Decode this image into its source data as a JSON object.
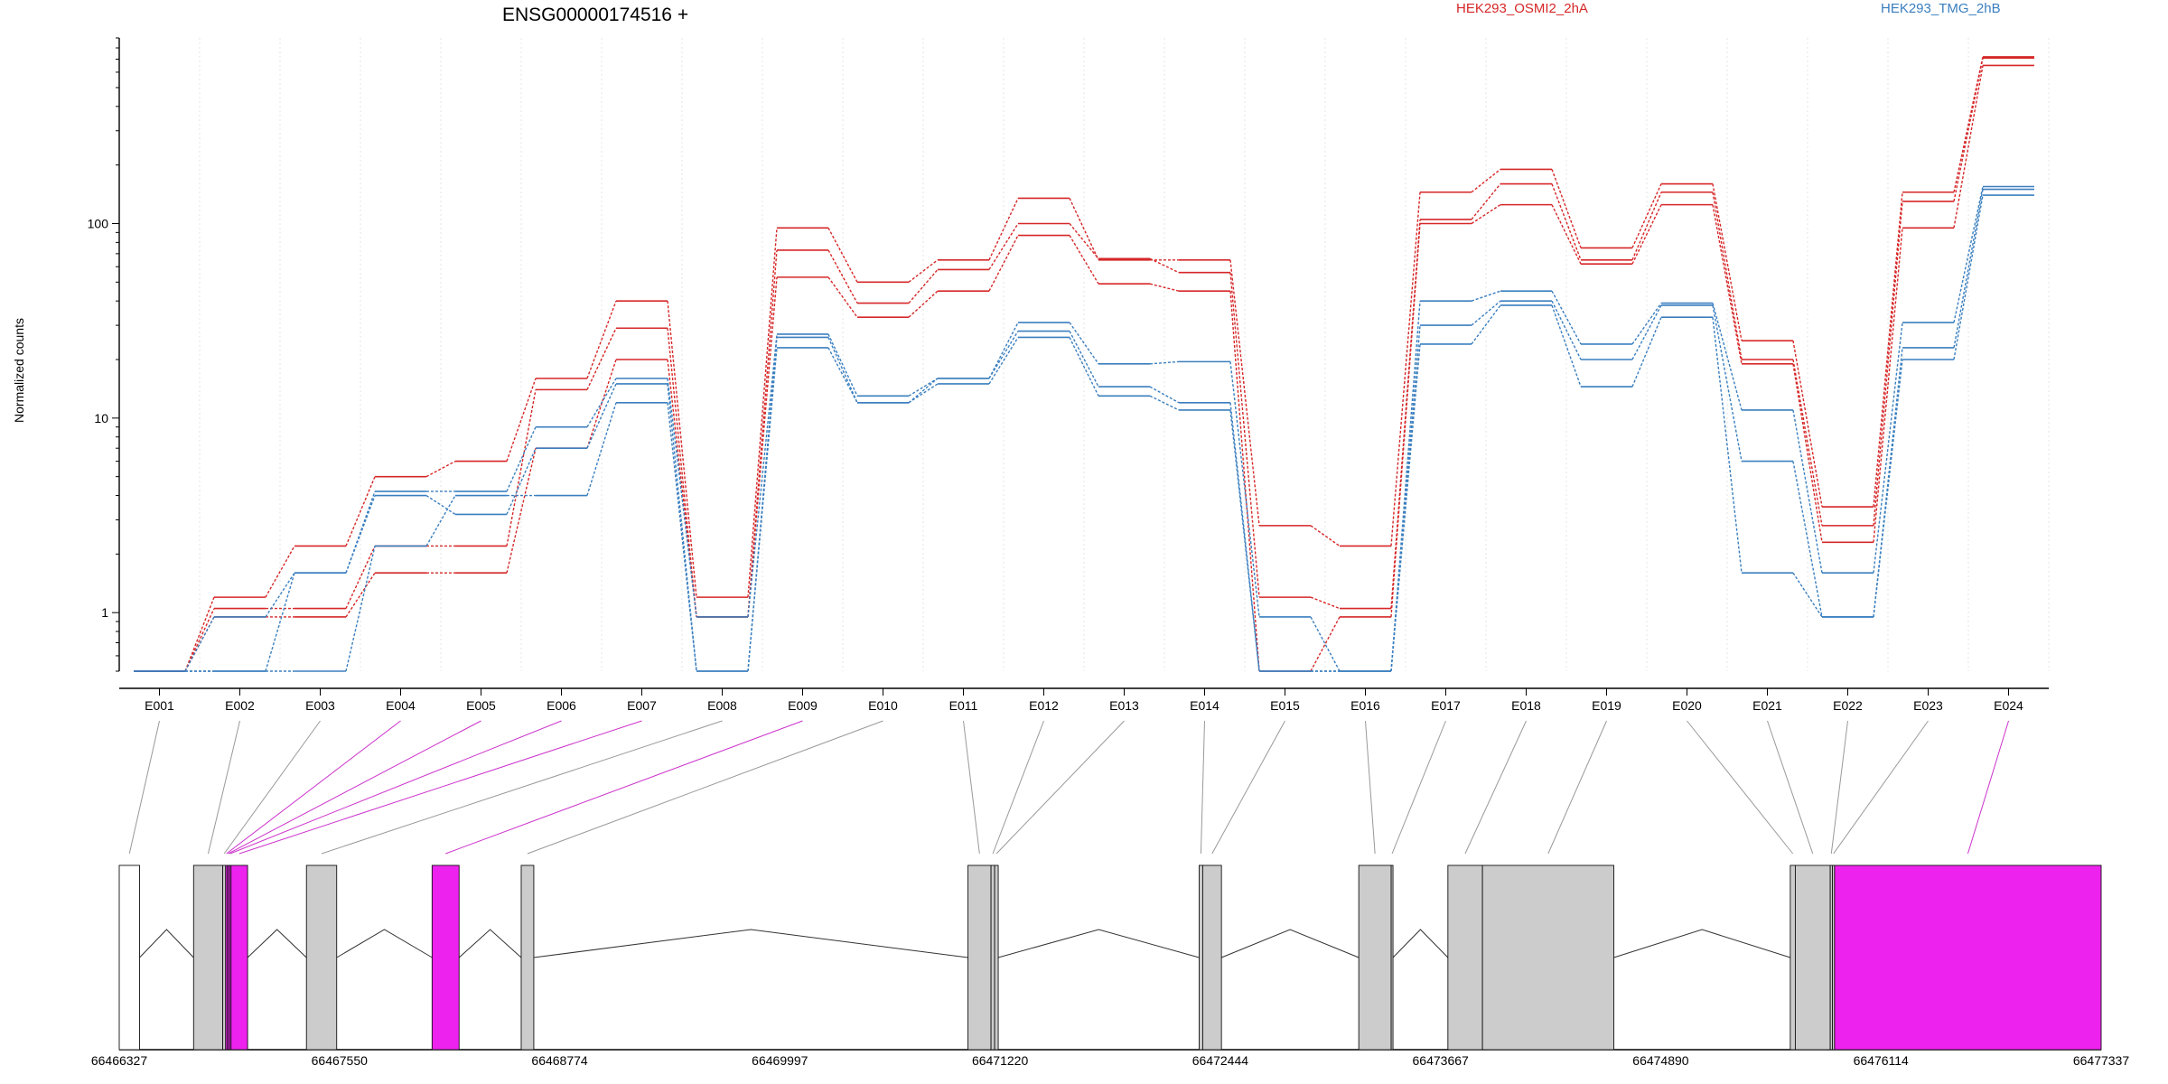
{
  "chart_data": {
    "type": "line",
    "title": "ENSG00000174516 +",
    "ylabel": "Normalized counts",
    "yscale": "log",
    "ylim": [
      0.5,
      900
    ],
    "yticks": [
      "1",
      "10",
      "100"
    ],
    "categories": [
      "E001",
      "E002",
      "E003",
      "E004",
      "E005",
      "E006",
      "E007",
      "E008",
      "E009",
      "E010",
      "E011",
      "E012",
      "E013",
      "E014",
      "E015",
      "E016",
      "E017",
      "E018",
      "E019",
      "E020",
      "E021",
      "E022",
      "E023",
      "E024"
    ],
    "legend": [
      {
        "label": "HEK293_OSMI2_2hA",
        "color": "#d62728"
      },
      {
        "label": "HEK293_TMG_2hB",
        "color": "#3a7fbf"
      }
    ],
    "series": [
      {
        "group": "HEK293_OSMI2_2hA",
        "color": "#d62728",
        "values": [
          0.5,
          1.2,
          2.2,
          5,
          6,
          16,
          40,
          1.2,
          95,
          50,
          65,
          135,
          65,
          65,
          2.8,
          2.2,
          145,
          190,
          75,
          160,
          25,
          3.5,
          145,
          720
        ]
      },
      {
        "group": "HEK293_OSMI2_2hA",
        "color": "#d62728",
        "values": [
          0.5,
          1.05,
          1.05,
          2.2,
          2.2,
          14,
          29,
          0.95,
          73,
          39,
          58,
          100,
          66,
          56,
          1.2,
          1.05,
          105,
          160,
          65,
          145,
          20,
          2.8,
          130,
          710
        ]
      },
      {
        "group": "HEK293_OSMI2_2hA",
        "color": "#d62728",
        "values": [
          0.5,
          0.95,
          0.95,
          1.6,
          1.6,
          7,
          20,
          0.95,
          53,
          33,
          45,
          87,
          49,
          45,
          0.5,
          0.95,
          100,
          125,
          62,
          125,
          19,
          2.3,
          95,
          650
        ]
      },
      {
        "group": "HEK293_TMG_2hB",
        "color": "#3a7fbf",
        "values": [
          0.5,
          0.95,
          1.6,
          4.2,
          4.2,
          9,
          16,
          0.95,
          27,
          13,
          16,
          31,
          19,
          19.5,
          0.95,
          0.5,
          40,
          45,
          24,
          39,
          11,
          1.6,
          31,
          155
        ]
      },
      {
        "group": "HEK293_TMG_2hB",
        "color": "#3a7fbf",
        "values": [
          0.5,
          0.5,
          1.6,
          4,
          3.2,
          7,
          15,
          0.5,
          26,
          12,
          16,
          28,
          14.5,
          12,
          0.5,
          0.5,
          30,
          40,
          20,
          38,
          6,
          0.95,
          23,
          150
        ]
      },
      {
        "group": "HEK293_TMG_2hB",
        "color": "#3a7fbf",
        "values": [
          0.5,
          0.5,
          0.5,
          2.2,
          4,
          4,
          12,
          0.5,
          23,
          12,
          15,
          26,
          13,
          11,
          0.5,
          0.5,
          24,
          38,
          14.5,
          33,
          1.6,
          0.95,
          20,
          140
        ]
      }
    ],
    "gene_model": {
      "coordinates": [
        "66466327",
        "66467550",
        "66468774",
        "66469997",
        "66471220",
        "66472444",
        "66473667",
        "66474890",
        "66476114",
        "66477337"
      ],
      "range": [
        66466327,
        66477337
      ],
      "exons": [
        {
          "id": "E001",
          "start": 66466327,
          "end": 66466440,
          "fill": "#ffffff",
          "tested": false
        },
        {
          "id": "E002",
          "start": 66466740,
          "end": 66466902,
          "fill": "#cccccc",
          "tested": true
        },
        {
          "id": "E003",
          "start": 66466902,
          "end": 66466918,
          "fill": "#cccccc",
          "tested": true
        },
        {
          "id": "E004",
          "start": 66466918,
          "end": 66466928,
          "fill": "#ee22ee",
          "tested": true
        },
        {
          "id": "E005",
          "start": 66466928,
          "end": 66466938,
          "fill": "#ee22ee",
          "tested": true
        },
        {
          "id": "E006",
          "start": 66466938,
          "end": 66466948,
          "fill": "#ee22ee",
          "tested": true
        },
        {
          "id": "E007",
          "start": 66466948,
          "end": 66467040,
          "fill": "#ee22ee",
          "tested": true
        },
        {
          "id": "E008",
          "start": 66467367,
          "end": 66467535,
          "fill": "#cccccc",
          "tested": true
        },
        {
          "id": "E009",
          "start": 66468065,
          "end": 66468215,
          "fill": "#ee22ee",
          "tested": true
        },
        {
          "id": "E010",
          "start": 66468560,
          "end": 66468630,
          "fill": "#cccccc",
          "tested": true
        },
        {
          "id": "E011",
          "start": 66471042,
          "end": 66471170,
          "fill": "#cccccc",
          "tested": true
        },
        {
          "id": "E012",
          "start": 66471170,
          "end": 66471190,
          "fill": "#cccccc",
          "tested": true
        },
        {
          "id": "E013",
          "start": 66471190,
          "end": 66471210,
          "fill": "#cccccc",
          "tested": true
        },
        {
          "id": "E014",
          "start": 66472326,
          "end": 66472346,
          "fill": "#cccccc",
          "tested": true
        },
        {
          "id": "E015",
          "start": 66472346,
          "end": 66472450,
          "fill": "#cccccc",
          "tested": true
        },
        {
          "id": "E016",
          "start": 66473213,
          "end": 66473393,
          "fill": "#cccccc",
          "tested": true
        },
        {
          "id": "E017",
          "start": 66473393,
          "end": 66473403,
          "fill": "#cccccc",
          "tested": true
        },
        {
          "id": "E018",
          "start": 66473708,
          "end": 66473900,
          "fill": "#cccccc",
          "tested": true
        },
        {
          "id": "E019",
          "start": 66473900,
          "end": 66474630,
          "fill": "#cccccc",
          "tested": true
        },
        {
          "id": "E020",
          "start": 66475610,
          "end": 66475638,
          "fill": "#cccccc",
          "tested": true
        },
        {
          "id": "E021",
          "start": 66475638,
          "end": 66475832,
          "fill": "#cccccc",
          "tested": true
        },
        {
          "id": "E022",
          "start": 66475832,
          "end": 66475844,
          "fill": "#cccccc",
          "tested": true
        },
        {
          "id": "E023",
          "start": 66475844,
          "end": 66475856,
          "fill": "#cccccc",
          "tested": true
        },
        {
          "id": "E024",
          "start": 66475856,
          "end": 66477337,
          "fill": "#ee22ee",
          "tested": true
        }
      ],
      "introns": [
        [
          66466440,
          66466740
        ],
        [
          66467040,
          66467367
        ],
        [
          66467535,
          66468065
        ],
        [
          66468215,
          66468560
        ],
        [
          66468630,
          66471042
        ],
        [
          66471210,
          66472326
        ],
        [
          66472450,
          66473213
        ],
        [
          66473403,
          66473708
        ],
        [
          66474630,
          66475610
        ]
      ],
      "link_colors": {
        "significant": "#cc33cc",
        "normal": "#999999"
      },
      "significant_links": [
        "E004",
        "E005",
        "E006",
        "E007",
        "E009",
        "E024"
      ]
    }
  }
}
